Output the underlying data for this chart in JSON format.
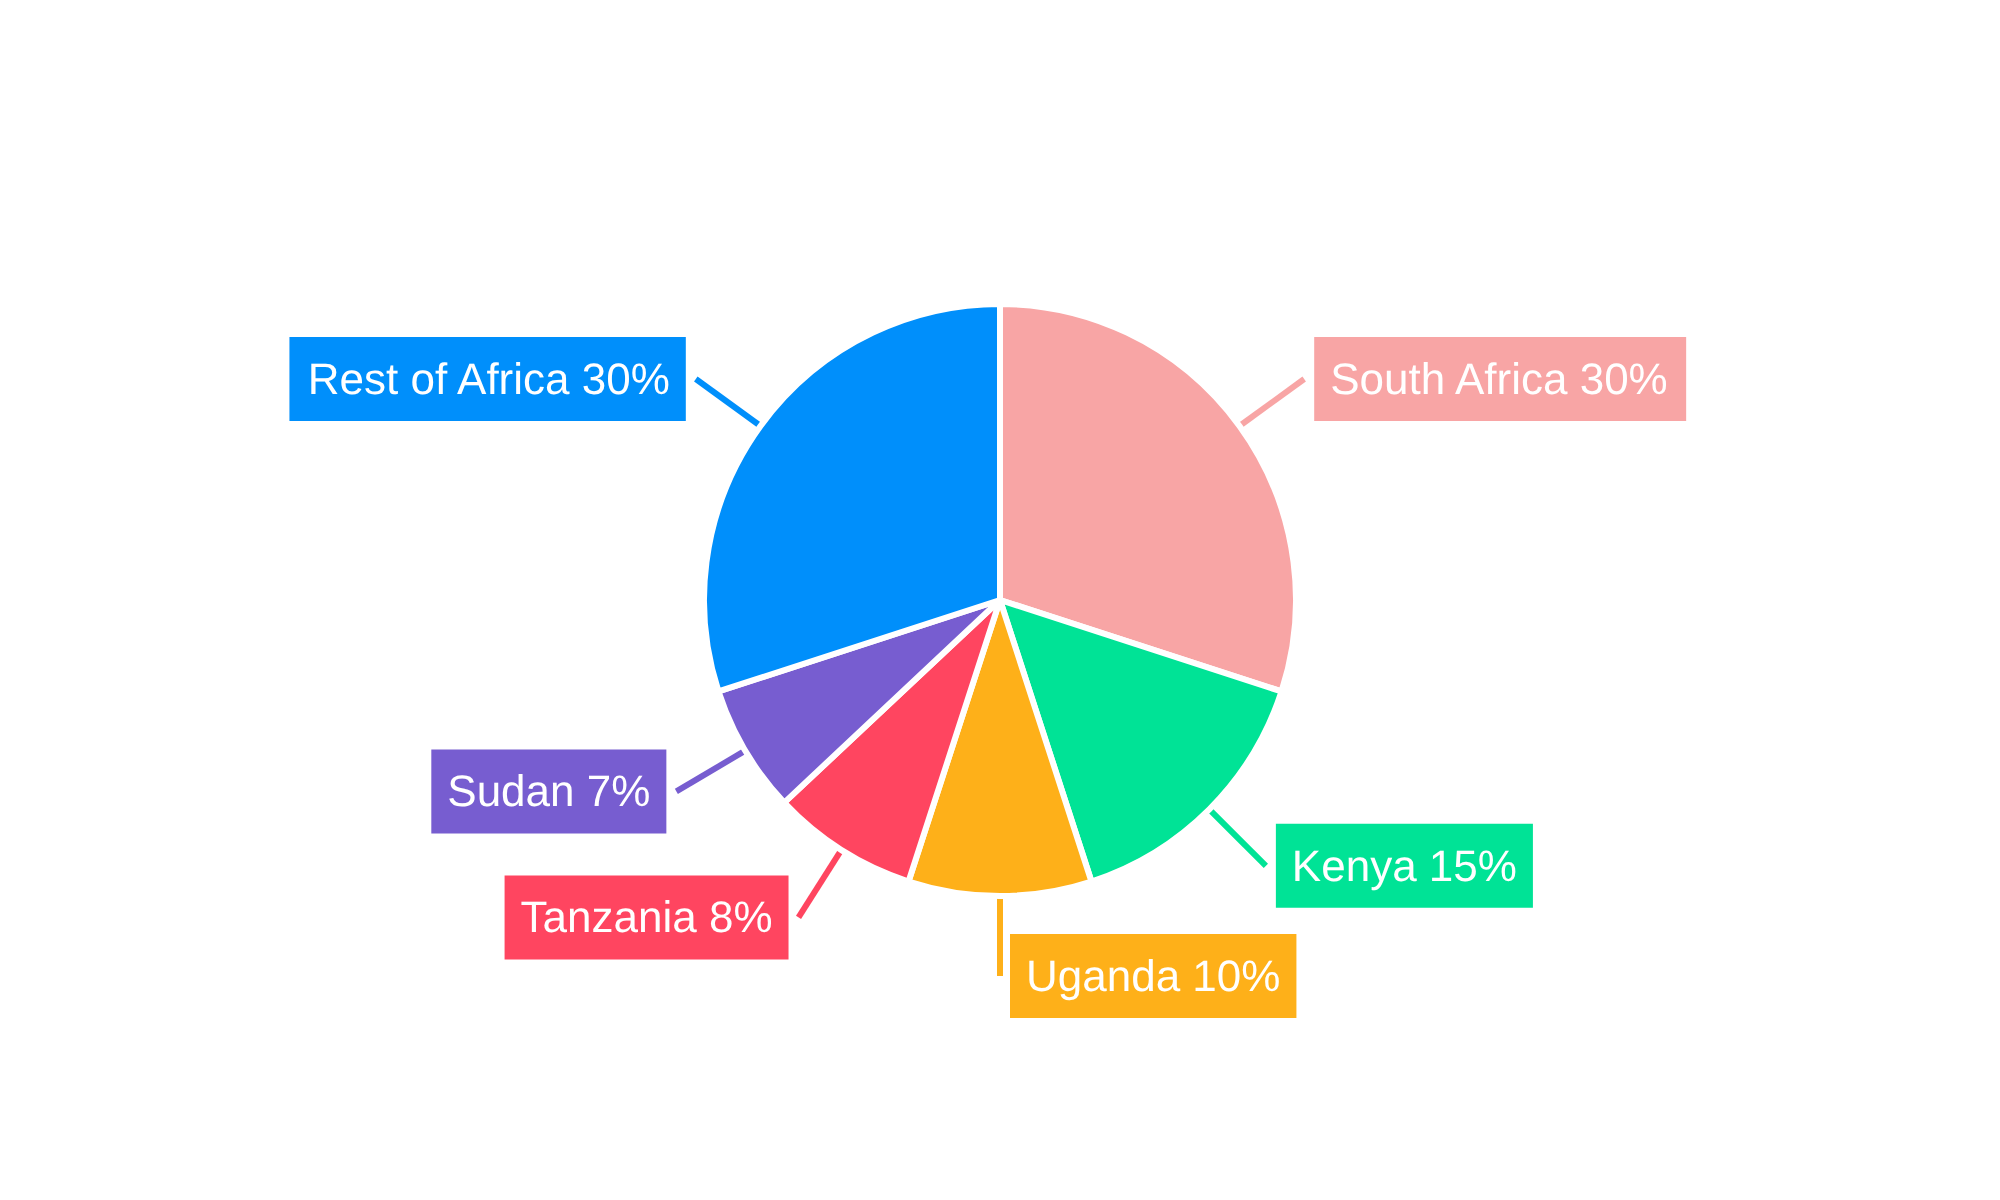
{
  "chart_data": {
    "type": "pie",
    "categories": [
      "South Africa",
      "Kenya",
      "Uganda",
      "Tanzania",
      "Sudan",
      "Rest of Africa"
    ],
    "values": [
      30,
      15,
      10,
      8,
      7,
      30
    ],
    "value_labels": [
      "30%",
      "15%",
      "10%",
      "8%",
      "7%",
      "30%"
    ],
    "colors": [
      "#f8a5a5",
      "#00e396",
      "#feb019",
      "#ff4560",
      "#775dd0",
      "#008ffb"
    ],
    "legend": false
  }
}
